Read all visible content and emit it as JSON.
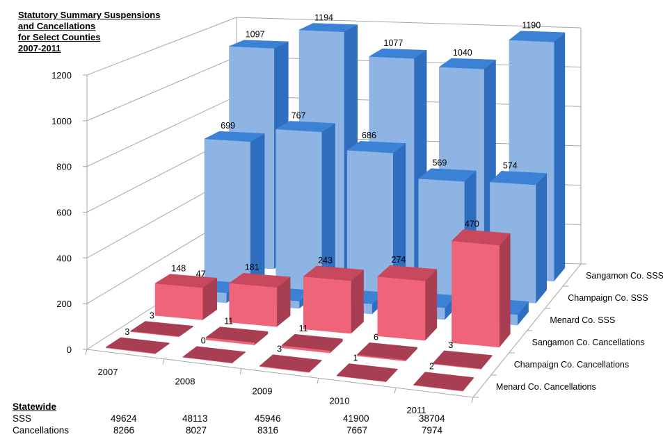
{
  "chart_data": {
    "type": "bar",
    "subtype": "3d-column",
    "title": [
      "Statutory Summary Suspensions",
      "and Cancellations",
      "for Select Counties",
      "2007-2011"
    ],
    "categories": [
      "2007",
      "2008",
      "2009",
      "2010",
      "2011"
    ],
    "ylim": [
      0,
      1200
    ],
    "yticks": [
      "0",
      "200",
      "400",
      "600",
      "800",
      "1000",
      "1200"
    ],
    "grid": true,
    "series": [
      {
        "name": "Menard Co. Cancellations",
        "values": [
          3,
          0,
          3,
          1,
          2
        ],
        "color": "red"
      },
      {
        "name": "Champaign Co. Cancellations",
        "values": [
          3,
          11,
          11,
          6,
          3
        ],
        "color": "red"
      },
      {
        "name": "Sangamon Co. Cancellations",
        "values": [
          148,
          181,
          243,
          274,
          470
        ],
        "color": "red"
      },
      {
        "name": "Menard Co. SSS",
        "values": [
          47,
          35,
          48,
          56,
          50
        ],
        "color": "blue"
      },
      {
        "name": "Champaign Co. SSS",
        "values": [
          699,
          767,
          686,
          569,
          574
        ],
        "color": "blue"
      },
      {
        "name": "Sangamon Co. SSS",
        "values": [
          1097,
          1194,
          1077,
          1040,
          1190
        ],
        "color": "blue"
      }
    ],
    "colors": {
      "blue": {
        "front": "#8eb4e3",
        "side": "#2f6ebf",
        "top": "#3b82d6"
      },
      "red": {
        "front": "#f0647a",
        "side": "#a83e52",
        "top": "#c8485e"
      }
    }
  },
  "statewide": {
    "heading": "Statewide",
    "rows": [
      {
        "label": "SSS",
        "values": [
          "49624",
          "48113",
          "45946",
          "41900",
          "38704"
        ]
      },
      {
        "label": "Cancellations",
        "values": [
          "8266",
          "8027",
          "8316",
          "7667",
          "7974"
        ]
      }
    ]
  }
}
